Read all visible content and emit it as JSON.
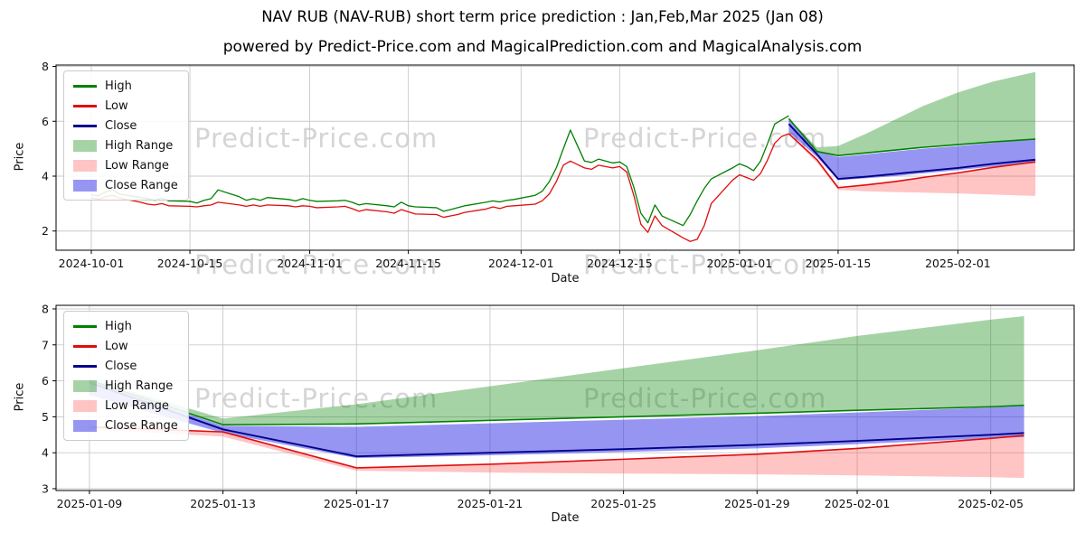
{
  "title": "NAV RUB (NAV-RUB) short term price prediction : Jan,Feb,Mar 2025 (Jan 08)",
  "subtitle": "powered by Predict-Price.com and MagicalPrediction.com and MagicalAnalysis.com",
  "watermark": "Predict-Price.com",
  "colors": {
    "high": "#008000",
    "low": "#e00d0d",
    "close": "#00008b",
    "high_range": "rgba(0,128,0,0.35)",
    "low_range": "rgba(255,70,70,0.32)",
    "close_range": "rgba(45,45,230,0.5)",
    "grid": "#c9c9c9",
    "spine": "#000000"
  },
  "legend": [
    {
      "label": "High",
      "type": "line",
      "color": "high"
    },
    {
      "label": "Low",
      "type": "line",
      "color": "low"
    },
    {
      "label": "Close",
      "type": "line",
      "color": "close"
    },
    {
      "label": "High Range",
      "type": "patch",
      "color": "high_range"
    },
    {
      "label": "Low Range",
      "type": "patch",
      "color": "low_range"
    },
    {
      "label": "Close Range",
      "type": "patch",
      "color": "close_range"
    }
  ],
  "chart_data": [
    {
      "type": "line",
      "name": "history-and-forecast",
      "xlabel": "Date",
      "ylabel": "Price",
      "x_unit": "days since 2024-10-01",
      "xlim": [
        -5,
        139.5
      ],
      "ylim": [
        1.3,
        8.05
      ],
      "yticks": [
        2,
        4,
        6,
        8
      ],
      "xticks": [
        {
          "x": 0,
          "label": "2024-10-01"
        },
        {
          "x": 14,
          "label": "2024-10-15"
        },
        {
          "x": 31,
          "label": "2024-11-01"
        },
        {
          "x": 45,
          "label": "2024-11-15"
        },
        {
          "x": 61,
          "label": "2024-12-01"
        },
        {
          "x": 75,
          "label": "2024-12-15"
        },
        {
          "x": 92,
          "label": "2025-01-01"
        },
        {
          "x": 106,
          "label": "2025-01-15"
        },
        {
          "x": 123,
          "label": "2025-02-01"
        }
      ],
      "history": {
        "x": [
          0,
          1,
          2,
          3,
          4,
          7,
          8,
          9,
          10,
          11,
          14,
          15,
          16,
          17,
          18,
          21,
          22,
          23,
          24,
          25,
          28,
          29,
          30,
          31,
          32,
          35,
          36,
          37,
          38,
          39,
          42,
          43,
          44,
          45,
          46,
          49,
          50,
          51,
          52,
          53,
          56,
          57,
          58,
          59,
          60,
          63,
          64,
          65,
          66,
          67,
          68,
          70,
          71,
          72,
          73,
          74,
          75,
          76,
          77,
          78,
          79,
          80,
          81,
          84,
          85,
          86,
          87,
          88,
          91,
          92,
          93,
          94,
          95,
          96,
          97,
          98,
          99
        ],
        "high": [
          3.32,
          3.28,
          3.42,
          3.5,
          3.35,
          3.22,
          3.18,
          3.12,
          3.2,
          3.1,
          3.08,
          3.02,
          3.12,
          3.18,
          3.5,
          3.25,
          3.12,
          3.18,
          3.12,
          3.22,
          3.15,
          3.1,
          3.18,
          3.12,
          3.08,
          3.1,
          3.12,
          3.05,
          2.95,
          3.0,
          2.92,
          2.88,
          3.05,
          2.92,
          2.88,
          2.85,
          2.72,
          2.78,
          2.85,
          2.92,
          3.05,
          3.1,
          3.06,
          3.12,
          3.15,
          3.3,
          3.45,
          3.8,
          4.3,
          5.0,
          5.68,
          4.55,
          4.5,
          4.62,
          4.55,
          4.48,
          4.52,
          4.35,
          3.6,
          2.65,
          2.3,
          2.95,
          2.55,
          2.2,
          2.6,
          3.1,
          3.55,
          3.9,
          4.3,
          4.45,
          4.35,
          4.2,
          4.55,
          5.2,
          5.9,
          6.05,
          6.2
        ],
        "low": [
          3.22,
          3.15,
          3.25,
          3.3,
          3.2,
          3.05,
          2.98,
          2.95,
          3.0,
          2.92,
          2.9,
          2.88,
          2.92,
          2.95,
          3.05,
          2.95,
          2.9,
          2.95,
          2.9,
          2.95,
          2.92,
          2.88,
          2.92,
          2.9,
          2.85,
          2.88,
          2.9,
          2.82,
          2.72,
          2.78,
          2.7,
          2.65,
          2.78,
          2.7,
          2.62,
          2.6,
          2.5,
          2.55,
          2.6,
          2.68,
          2.8,
          2.88,
          2.82,
          2.9,
          2.92,
          2.98,
          3.1,
          3.35,
          3.8,
          4.4,
          4.55,
          4.3,
          4.25,
          4.4,
          4.35,
          4.3,
          4.35,
          4.15,
          3.3,
          2.25,
          1.95,
          2.55,
          2.2,
          1.75,
          1.62,
          1.7,
          2.2,
          3.0,
          3.85,
          4.05,
          3.95,
          3.85,
          4.1,
          4.6,
          5.2,
          5.45,
          5.55
        ]
      },
      "forecast": {
        "x": [
          99,
          103,
          106,
          110,
          114,
          118,
          123,
          128,
          134
        ],
        "close": [
          5.9,
          4.8,
          3.9,
          3.98,
          4.08,
          4.18,
          4.3,
          4.45,
          4.6
        ],
        "close_lower": [
          5.6,
          4.7,
          3.85,
          3.92,
          4.0,
          4.1,
          4.22,
          4.35,
          4.48
        ],
        "close_upper": [
          6.1,
          4.9,
          4.7,
          4.8,
          4.9,
          5.0,
          5.1,
          5.22,
          5.35
        ],
        "high": [
          6.1,
          4.9,
          4.75,
          4.85,
          4.95,
          5.05,
          5.15,
          5.25,
          5.35
        ],
        "high_upper": [
          6.1,
          5.05,
          5.1,
          5.55,
          6.05,
          6.55,
          7.05,
          7.45,
          7.8
        ],
        "low": [
          5.55,
          4.6,
          3.58,
          3.68,
          3.8,
          3.95,
          4.12,
          4.32,
          4.52
        ],
        "low_lower": [
          5.5,
          4.5,
          3.5,
          3.45,
          3.42,
          3.4,
          3.37,
          3.33,
          3.28
        ]
      }
    },
    {
      "type": "line",
      "name": "forecast-zoom",
      "xlabel": "Date",
      "ylabel": "Price",
      "x_unit": "days since 2024-10-01",
      "xlim": [
        99,
        129.5
      ],
      "ylim": [
        2.95,
        8.1
      ],
      "yticks": [
        3,
        4,
        5,
        6,
        7,
        8
      ],
      "xticks": [
        {
          "x": 100,
          "label": "2025-01-09"
        },
        {
          "x": 104,
          "label": "2025-01-13"
        },
        {
          "x": 108,
          "label": "2025-01-17"
        },
        {
          "x": 112,
          "label": "2025-01-21"
        },
        {
          "x": 116,
          "label": "2025-01-25"
        },
        {
          "x": 120,
          "label": "2025-01-29"
        },
        {
          "x": 123,
          "label": "2025-02-01"
        },
        {
          "x": 127,
          "label": "2025-02-05"
        }
      ],
      "forecast": {
        "x": [
          100,
          104,
          108,
          112,
          116,
          120,
          123,
          127,
          128
        ],
        "close": [
          5.95,
          4.65,
          3.9,
          4.0,
          4.1,
          4.22,
          4.33,
          4.5,
          4.55
        ],
        "close_lower": [
          5.6,
          4.55,
          3.85,
          3.93,
          4.02,
          4.12,
          4.24,
          4.4,
          4.44
        ],
        "close_upper": [
          6.0,
          4.75,
          4.72,
          4.82,
          4.92,
          5.02,
          5.12,
          5.26,
          5.3
        ],
        "high": [
          6.02,
          4.78,
          4.8,
          4.9,
          5.0,
          5.1,
          5.18,
          5.28,
          5.32
        ],
        "high_upper": [
          6.05,
          4.95,
          5.35,
          5.85,
          6.35,
          6.85,
          7.25,
          7.7,
          7.8
        ],
        "low": [
          4.72,
          4.58,
          3.58,
          3.68,
          3.82,
          3.96,
          4.12,
          4.4,
          4.48
        ],
        "low_lower": [
          4.65,
          4.45,
          3.5,
          3.45,
          3.42,
          3.4,
          3.37,
          3.32,
          3.3
        ]
      }
    }
  ]
}
